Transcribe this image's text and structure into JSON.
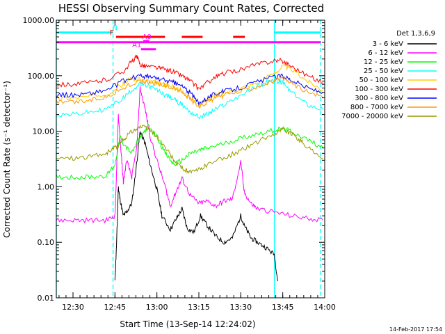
{
  "chart_data": {
    "type": "line",
    "title": "HESSI Observing Summary Count Rates, Corrected",
    "xlabel": "Start Time (13-Sep-14 12:24:02)",
    "ylabel": "Corrected Count Rate (s⁻¹ detector⁻¹)",
    "yscale": "log",
    "xlim": [
      12.4006,
      14.0
    ],
    "ylim": [
      0.01,
      1000
    ],
    "x_ticks": [
      {
        "value": 12.5,
        "label": "12:30"
      },
      {
        "value": 12.75,
        "label": "12:45"
      },
      {
        "value": 13.0,
        "label": "13:00"
      },
      {
        "value": 13.25,
        "label": "13:15"
      },
      {
        "value": 13.5,
        "label": "13:30"
      },
      {
        "value": 13.75,
        "label": "13:45"
      },
      {
        "value": 14.0,
        "label": "14:00"
      }
    ],
    "y_ticks": [
      {
        "value": 0.01,
        "label": "0.01"
      },
      {
        "value": 0.1,
        "label": "0.10"
      },
      {
        "value": 1,
        "label": "1.00"
      },
      {
        "value": 10,
        "label": "10.00"
      },
      {
        "value": 100,
        "label": "100.00"
      },
      {
        "value": 1000,
        "label": "1000.00"
      }
    ],
    "legend_title": "Det 1,3,6,9",
    "legend_placement": "right",
    "series": [
      {
        "name": "3 - 6 keV",
        "color": "#000000",
        "x": [
          12.75,
          12.76,
          12.77,
          12.78,
          12.8,
          12.82,
          12.85,
          12.875,
          12.9,
          12.93,
          12.96,
          13.0,
          13.03,
          13.08,
          13.12,
          13.15,
          13.18,
          13.22,
          13.26,
          13.3,
          13.35,
          13.4,
          13.45,
          13.5,
          13.52,
          13.56,
          13.6,
          13.65,
          13.7,
          13.72
        ],
        "values": [
          0.02,
          0.1,
          1.0,
          0.6,
          0.3,
          0.35,
          0.5,
          2.0,
          10.0,
          6.0,
          2.5,
          0.9,
          0.3,
          0.17,
          0.28,
          0.4,
          0.18,
          0.15,
          0.3,
          0.2,
          0.13,
          0.1,
          0.12,
          0.3,
          0.2,
          0.12,
          0.1,
          0.08,
          0.06,
          0.02
        ]
      },
      {
        "name": "6 - 12 keV",
        "color": "#ff00ff",
        "x": [
          12.4,
          12.5,
          12.6,
          12.7,
          12.75,
          12.76,
          12.77,
          12.79,
          12.8,
          12.82,
          12.85,
          12.88,
          12.9,
          12.93,
          12.96,
          13.0,
          13.05,
          13.08,
          13.12,
          13.15,
          13.2,
          13.25,
          13.3,
          13.35,
          13.4,
          13.45,
          13.5,
          13.52,
          13.56,
          13.6,
          13.7,
          13.8,
          13.9,
          13.99
        ],
        "values": [
          0.25,
          0.25,
          0.25,
          0.25,
          0.3,
          2.0,
          20.0,
          3.0,
          1.2,
          3.0,
          1.5,
          5.0,
          60.0,
          25.0,
          8.0,
          3.0,
          1.0,
          0.45,
          0.9,
          1.4,
          0.7,
          0.5,
          0.55,
          0.45,
          0.55,
          0.6,
          2.8,
          0.8,
          0.5,
          0.4,
          0.35,
          0.3,
          0.27,
          0.25
        ]
      },
      {
        "name": "12 - 25 keV",
        "color": "#00ff00",
        "x": [
          12.4,
          12.5,
          12.6,
          12.7,
          12.75,
          12.78,
          12.8,
          12.85,
          12.9,
          12.95,
          13.0,
          13.05,
          13.1,
          13.15,
          13.2,
          13.25,
          13.3,
          13.4,
          13.5,
          13.6,
          13.7,
          13.75,
          13.8,
          13.9,
          13.99
        ],
        "values": [
          1.5,
          1.5,
          1.5,
          1.6,
          2.5,
          8.0,
          6.0,
          4.0,
          8.0,
          12.0,
          8.0,
          4.0,
          2.5,
          3.0,
          4.0,
          4.5,
          5.0,
          6.0,
          7.5,
          9.0,
          10.5,
          11.0,
          10.0,
          7.0,
          5.0
        ]
      },
      {
        "name": "25 - 50 keV",
        "color": "#00ffff",
        "x": [
          12.4,
          12.5,
          12.6,
          12.7,
          12.8,
          12.85,
          12.9,
          12.95,
          13.0,
          13.05,
          13.1,
          13.15,
          13.2,
          13.25,
          13.3,
          13.35,
          13.4,
          13.5,
          13.6,
          13.65,
          13.7,
          13.75,
          13.8,
          13.9,
          13.99
        ],
        "values": [
          20.0,
          20.0,
          22.0,
          25.0,
          40.0,
          55.0,
          70.0,
          65.0,
          55.0,
          45.0,
          38.0,
          30.0,
          22.0,
          18.0,
          20.0,
          25.0,
          30.0,
          45.0,
          65.0,
          75.0,
          80.0,
          75.0,
          50.0,
          30.0,
          25.0
        ]
      },
      {
        "name": "50 - 100 keV",
        "color": "#ffcc00",
        "x": [
          12.4,
          12.5,
          12.6,
          12.7,
          12.8,
          12.85,
          12.9,
          12.95,
          13.0,
          13.05,
          13.1,
          13.15,
          13.2,
          13.25,
          13.3,
          13.35,
          13.4,
          13.5,
          13.6,
          13.7,
          13.75,
          13.8,
          13.9,
          13.99
        ],
        "values": [
          40.0,
          40.0,
          42.0,
          48.0,
          70.0,
          90.0,
          85.0,
          80.0,
          75.0,
          68.0,
          62.0,
          52.0,
          40.0,
          30.0,
          36.0,
          45.0,
          50.0,
          60.0,
          75.0,
          110.0,
          150.0,
          130.0,
          80.0,
          55.0
        ]
      },
      {
        "name": "100 - 300 keV",
        "color": "#ff0000",
        "x": [
          12.4,
          12.5,
          12.6,
          12.7,
          12.8,
          12.85,
          12.88,
          12.9,
          12.93,
          13.0,
          13.05,
          13.1,
          13.15,
          13.2,
          13.25,
          13.3,
          13.35,
          13.4,
          13.5,
          13.6,
          13.7,
          13.75,
          13.8,
          13.9,
          13.99
        ],
        "values": [
          70.0,
          70.0,
          75.0,
          85.0,
          120.0,
          180.0,
          220.0,
          160.0,
          150.0,
          140.0,
          130.0,
          118.0,
          100.0,
          80.0,
          58.0,
          75.0,
          95.0,
          110.0,
          130.0,
          160.0,
          190.0,
          185.0,
          150.0,
          100.0,
          75.0
        ]
      },
      {
        "name": "300 - 800 keV",
        "color": "#0000ff",
        "x": [
          12.4,
          12.5,
          12.6,
          12.7,
          12.8,
          12.9,
          12.95,
          13.0,
          13.05,
          13.1,
          13.15,
          13.2,
          13.25,
          13.3,
          13.35,
          13.4,
          13.5,
          13.6,
          13.7,
          13.75,
          13.8,
          13.9,
          13.99
        ],
        "values": [
          45.0,
          45.0,
          48.0,
          55.0,
          80.0,
          100.0,
          95.0,
          90.0,
          82.0,
          75.0,
          65.0,
          48.0,
          32.0,
          40.0,
          48.0,
          52.0,
          62.0,
          78.0,
          95.0,
          100.0,
          85.0,
          60.0,
          50.0
        ]
      },
      {
        "name": "800 - 7000 keV",
        "color": "#ff9900",
        "x": [
          12.4,
          12.5,
          12.6,
          12.7,
          12.8,
          12.9,
          12.95,
          13.0,
          13.05,
          13.1,
          13.15,
          13.2,
          13.25,
          13.3,
          13.35,
          13.4,
          13.5,
          13.6,
          13.7,
          13.75,
          13.8,
          13.9,
          13.99
        ],
        "values": [
          33.0,
          33.0,
          36.0,
          42.0,
          60.0,
          80.0,
          78.0,
          72.0,
          66.0,
          60.0,
          52.0,
          38.0,
          28.0,
          34.0,
          40.0,
          44.0,
          52.0,
          65.0,
          82.0,
          88.0,
          75.0,
          50.0,
          40.0
        ]
      },
      {
        "name": "7000 - 20000 keV",
        "color": "#999900",
        "x": [
          12.4,
          12.5,
          12.6,
          12.7,
          12.75,
          12.8,
          12.85,
          12.9,
          12.95,
          13.0,
          13.05,
          13.1,
          13.15,
          13.2,
          13.25,
          13.3,
          13.4,
          13.5,
          13.6,
          13.7,
          13.75,
          13.8,
          13.85,
          13.9,
          13.99
        ],
        "values": [
          3.3,
          3.3,
          3.5,
          4.0,
          5.0,
          7.0,
          10.0,
          12.0,
          11.0,
          8.0,
          5.0,
          3.0,
          2.2,
          1.8,
          2.0,
          2.5,
          3.3,
          4.5,
          6.5,
          9.0,
          11.0,
          9.0,
          7.0,
          5.0,
          3.3
        ]
      }
    ],
    "vertical_markers": [
      {
        "x": 12.4006,
        "color": "#00ffff",
        "style": "solid"
      },
      {
        "x": 12.7386,
        "color": "#00ffff",
        "style": "dashed"
      },
      {
        "x": 13.7,
        "color": "#00ffff",
        "style": "solid"
      },
      {
        "x": 13.9758,
        "color": "#00ffff",
        "style": "dashed"
      }
    ],
    "flag_bars": [
      {
        "label": "N",
        "color": "#00ffff",
        "y": 600,
        "segments": [
          [
            12.4006,
            12.7386
          ],
          [
            13.7,
            13.9758
          ]
        ],
        "label_x": 12.75
      },
      {
        "label": "F",
        "color": "#ff0000",
        "y": 500,
        "segments": [
          [
            12.7567,
            13.0483
          ],
          [
            13.1483,
            13.2726
          ],
          [
            13.4542,
            13.5244
          ]
        ],
        "label_x": 12.73
      },
      {
        "label": "",
        "color": "#ff00ff",
        "y": 400,
        "segments": [
          [
            12.4006,
            13.9758
          ]
        ]
      },
      {
        "label": "A0",
        "color": "#ff00ff",
        "y": 420,
        "segments": [
          [
            12.9187,
            12.9537
          ]
        ],
        "label_x": 12.94
      },
      {
        "label": "A1",
        "color": "#ff00ff",
        "y": 300,
        "segments": [
          [
            12.9051,
            12.9943
          ]
        ],
        "label_x": 12.88
      }
    ],
    "footer_date": "14-Feb-2017 17:54"
  }
}
